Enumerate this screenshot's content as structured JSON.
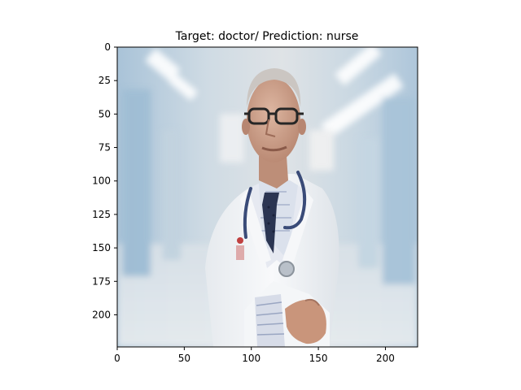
{
  "figure": {
    "title": "Target: doctor/ Prediction: nurse",
    "image_subject": "doctor-portrait"
  },
  "axes": {
    "x_range": [
      0,
      224
    ],
    "y_range": [
      0,
      224
    ],
    "y_inverted": true,
    "x_ticks": [
      {
        "value": 0,
        "label": "0"
      },
      {
        "value": 50,
        "label": "50"
      },
      {
        "value": 100,
        "label": "100"
      },
      {
        "value": 150,
        "label": "150"
      },
      {
        "value": 200,
        "label": "200"
      }
    ],
    "y_ticks": [
      {
        "value": 0,
        "label": "0"
      },
      {
        "value": 25,
        "label": "25"
      },
      {
        "value": 50,
        "label": "50"
      },
      {
        "value": 75,
        "label": "75"
      },
      {
        "value": 100,
        "label": "100"
      },
      {
        "value": 125,
        "label": "125"
      },
      {
        "value": 150,
        "label": "150"
      },
      {
        "value": 175,
        "label": "175"
      },
      {
        "value": 200,
        "label": "200"
      }
    ]
  },
  "colors": {
    "background_blue": "#b9cfe0",
    "coat_white": "#f1f3f6",
    "tie_navy": "#2b3552",
    "skin": "#c89a82"
  }
}
